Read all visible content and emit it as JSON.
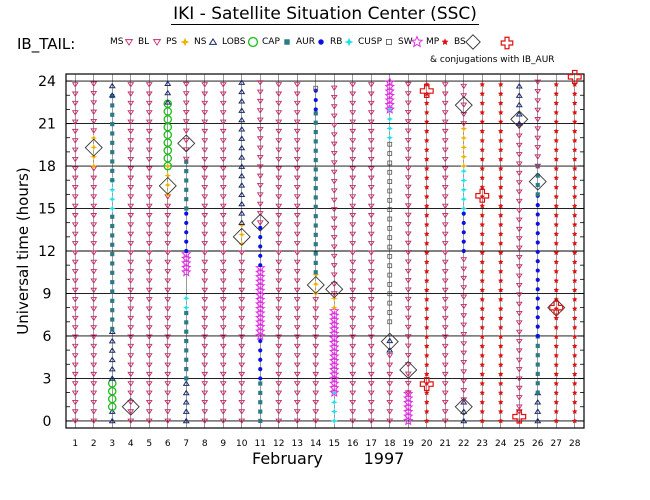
{
  "title": "IKI - Satellite Situation Center (SSC)",
  "chart_data": {
    "type": "scatter",
    "satellite_label": "IB_TAIL:",
    "legend": [
      {
        "key": "MS",
        "label": "MS",
        "marker": "tri-down",
        "color": "#cc2a6a"
      },
      {
        "key": "BL",
        "label": "BL",
        "marker": "tri-down",
        "color": "#cc2a6a"
      },
      {
        "key": "PS",
        "label": "PS",
        "marker": "star4",
        "color": "#f0b000"
      },
      {
        "key": "NS",
        "label": "NS",
        "marker": "tri-up",
        "color": "#1a2b6e"
      },
      {
        "key": "LOBS",
        "label": "LOBS",
        "marker": "circle",
        "color": "#18c018"
      },
      {
        "key": "CAP",
        "label": "CAP",
        "marker": "square",
        "color": "#2c7a86"
      },
      {
        "key": "AUR",
        "label": "AUR",
        "marker": "dot",
        "color": "#0a10e6"
      },
      {
        "key": "RB",
        "label": "RB",
        "marker": "star4",
        "color": "#18e0f0"
      },
      {
        "key": "CUSP",
        "label": "CUSP",
        "marker": "open-square",
        "color": "#555555"
      },
      {
        "key": "SW",
        "label": "SW",
        "marker": "star5",
        "color": "#e030e0"
      },
      {
        "key": "MP",
        "label": "MP",
        "marker": "star-solid",
        "color": "#e01010"
      },
      {
        "key": "BS",
        "label": "BS",
        "marker": "diamond",
        "color": "#333333"
      }
    ],
    "conjugation_marker": {
      "marker": "cross",
      "color": "#e01010"
    },
    "conjugation_label": "& conjugations with IB_AUR",
    "xlabel": "February        1997",
    "ylabel": "Universal time (hours)",
    "x_ticks": [
      1,
      2,
      3,
      4,
      5,
      6,
      7,
      8,
      9,
      10,
      11,
      12,
      13,
      14,
      15,
      16,
      17,
      18,
      19,
      20,
      21,
      22,
      23,
      24,
      25,
      26,
      27,
      28
    ],
    "y_ticks": [
      0,
      3,
      6,
      9,
      12,
      15,
      18,
      21,
      24
    ],
    "xlim": [
      0.5,
      28.5
    ],
    "ylim": [
      -0.5,
      24.5
    ],
    "grid": true,
    "series": [
      {
        "day": 1,
        "segments": [
          [
            "MS",
            0,
            24
          ]
        ]
      },
      {
        "day": 2,
        "segments": [
          [
            "MS",
            0,
            18
          ],
          [
            "PS",
            18,
            20.5
          ],
          [
            "MS",
            20.5,
            24
          ]
        ]
      },
      {
        "day": 3,
        "segments": [
          [
            "NS",
            0,
            1
          ],
          [
            "LOBS",
            1,
            3
          ],
          [
            "NS",
            3,
            6.5
          ],
          [
            "CAP",
            6.5,
            15
          ],
          [
            "RB",
            15,
            17
          ],
          [
            "CAP",
            17,
            23
          ],
          [
            "NS",
            23,
            24
          ]
        ]
      },
      {
        "day": 4,
        "segments": [
          [
            "MS",
            0,
            24
          ]
        ]
      },
      {
        "day": 5,
        "segments": [
          [
            "MS",
            0,
            24
          ]
        ]
      },
      {
        "day": 6,
        "segments": [
          [
            "MS",
            0,
            16
          ],
          [
            "PS",
            16,
            18
          ],
          [
            "LOBS",
            18,
            22.5
          ],
          [
            "NS",
            22.5,
            24
          ]
        ]
      },
      {
        "day": 7,
        "segments": [
          [
            "NS",
            0,
            3
          ],
          [
            "CAP",
            3,
            8
          ],
          [
            "RB",
            8,
            9
          ],
          [
            "SW",
            10.5,
            12
          ],
          [
            "AUR",
            12,
            15
          ],
          [
            "CAP",
            15,
            18.5
          ],
          [
            "MS",
            18.5,
            24
          ]
        ]
      },
      {
        "day": 8,
        "segments": [
          [
            "MS",
            0,
            24
          ]
        ]
      },
      {
        "day": 9,
        "segments": [
          [
            "MS",
            0,
            24
          ]
        ]
      },
      {
        "day": 10,
        "segments": [
          [
            "MS",
            0,
            12.5
          ],
          [
            "PS",
            12.5,
            14
          ],
          [
            "NS",
            14,
            24
          ]
        ]
      },
      {
        "day": 11,
        "segments": [
          [
            "CAP",
            0,
            3
          ],
          [
            "AUR",
            3,
            6
          ],
          [
            "SW",
            6,
            11
          ],
          [
            "AUR",
            11,
            14
          ],
          [
            "MS",
            14,
            24
          ]
        ]
      },
      {
        "day": 12,
        "segments": [
          [
            "MS",
            0,
            24
          ]
        ]
      },
      {
        "day": 13,
        "segments": [
          [
            "MS",
            0,
            24
          ]
        ]
      },
      {
        "day": 14,
        "segments": [
          [
            "MS",
            0,
            9
          ],
          [
            "PS",
            9,
            10.5
          ],
          [
            "CAP",
            10.5,
            22
          ],
          [
            "AUR",
            22,
            23.5
          ],
          [
            "CUSP",
            23.5,
            24
          ]
        ]
      },
      {
        "day": 15,
        "segments": [
          [
            "RB",
            0,
            2
          ],
          [
            "SW",
            2,
            8
          ],
          [
            "PS",
            8,
            9
          ],
          [
            "MS",
            9,
            24
          ]
        ]
      },
      {
        "day": 16,
        "segments": [
          [
            "MS",
            0,
            24
          ]
        ]
      },
      {
        "day": 17,
        "segments": [
          [
            "MS",
            0,
            24
          ]
        ]
      },
      {
        "day": 18,
        "segments": [
          [
            "MS",
            0,
            5
          ],
          [
            "NS",
            5,
            6
          ],
          [
            "CUSP",
            7,
            20
          ],
          [
            "RB",
            20,
            22
          ],
          [
            "SW",
            22,
            24
          ]
        ]
      },
      {
        "day": 19,
        "segments": [
          [
            "SW",
            0,
            2
          ],
          [
            "MS",
            2,
            24
          ]
        ]
      },
      {
        "day": 20,
        "segments": [
          [
            "MP",
            0,
            24
          ]
        ]
      },
      {
        "day": 21,
        "segments": [
          [
            "MS",
            0,
            24
          ]
        ]
      },
      {
        "day": 22,
        "segments": [
          [
            "NS",
            0,
            1.5
          ],
          [
            "MS",
            1.5,
            12
          ],
          [
            "AUR",
            12,
            15
          ],
          [
            "RB",
            15,
            18
          ],
          [
            "PS",
            18,
            21
          ],
          [
            "MS",
            21,
            24
          ]
        ]
      },
      {
        "day": 23,
        "segments": [
          [
            "MP",
            0,
            24
          ]
        ]
      },
      {
        "day": 24,
        "segments": [
          [
            "MP",
            0,
            24
          ]
        ]
      },
      {
        "day": 25,
        "segments": [
          [
            "MS",
            0,
            1
          ],
          [
            "MS",
            1,
            21
          ],
          [
            "NS",
            21,
            24
          ]
        ]
      },
      {
        "day": 26,
        "segments": [
          [
            "NS",
            0,
            2
          ],
          [
            "CAP",
            2,
            6
          ],
          [
            "AUR",
            6,
            16
          ],
          [
            "CAP",
            16,
            18
          ],
          [
            "MS",
            18,
            24
          ]
        ]
      },
      {
        "day": 27,
        "segments": [
          [
            "MP",
            0,
            24
          ]
        ]
      },
      {
        "day": 28,
        "segments": [
          [
            "MP",
            0,
            24
          ]
        ]
      }
    ],
    "bow_shocks": [
      [
        2,
        19.3
      ],
      [
        4,
        1
      ],
      [
        6,
        16.6
      ],
      [
        7,
        19.6
      ],
      [
        10,
        13
      ],
      [
        11,
        14
      ],
      [
        14,
        9.6
      ],
      [
        15,
        9.3
      ],
      [
        18,
        5.6
      ],
      [
        19,
        3.6
      ],
      [
        22,
        22.3
      ],
      [
        22,
        1
      ],
      [
        25,
        21.3
      ],
      [
        26,
        16.9
      ],
      [
        27,
        8
      ]
    ],
    "conjugations": [
      [
        20,
        23.3
      ],
      [
        20,
        2.6
      ],
      [
        23,
        15.9
      ],
      [
        25,
        0.3
      ],
      [
        27,
        8
      ],
      [
        28,
        24.3
      ]
    ]
  }
}
